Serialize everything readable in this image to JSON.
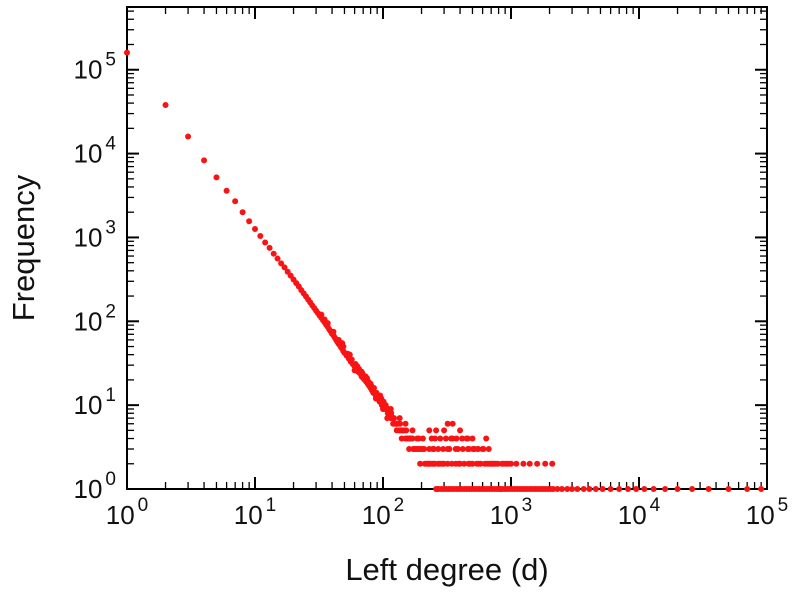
{
  "figure": {
    "background": "#ffffff",
    "frame_color": "#000000"
  },
  "chart_data": {
    "type": "scatter",
    "xlabel": "Left degree (d)",
    "ylabel": "Frequency",
    "xscale": "log",
    "yscale": "log",
    "xlim": [
      1,
      100000
    ],
    "ylim": [
      1,
      560000
    ],
    "x_tick_exponents": [
      0,
      1,
      2,
      3,
      4,
      5
    ],
    "y_tick_exponents": [
      0,
      1,
      2,
      3,
      4,
      5
    ],
    "grid": false,
    "legend": "none",
    "marker": {
      "shape": "circle",
      "color": "#f81414",
      "radius": 3
    },
    "power_law_fit": {
      "intercept": 150000,
      "exponent": -2.1
    },
    "points": [
      [
        1,
        160000
      ],
      [
        2,
        38000
      ],
      [
        3,
        16000
      ],
      [
        4,
        8300
      ],
      [
        5,
        5200
      ],
      [
        6,
        3600
      ],
      [
        7,
        2700
      ],
      [
        8,
        2000
      ],
      [
        9,
        1560
      ],
      [
        10,
        1260
      ],
      [
        11,
        1040
      ],
      [
        12,
        870
      ],
      [
        13,
        750
      ],
      [
        14,
        640
      ],
      [
        15,
        560
      ],
      [
        16,
        490
      ],
      [
        17,
        440
      ],
      [
        18,
        390
      ],
      [
        19,
        350
      ],
      [
        20,
        315
      ],
      [
        21,
        285
      ],
      [
        22,
        260
      ],
      [
        23,
        235
      ],
      [
        24,
        215
      ],
      [
        25,
        198
      ],
      [
        26,
        182
      ],
      [
        27,
        168
      ],
      [
        28,
        155
      ],
      [
        29,
        144
      ],
      [
        30,
        134
      ],
      [
        31,
        125
      ],
      [
        32,
        117
      ],
      [
        33,
        110
      ],
      [
        33,
        120
      ],
      [
        34,
        103
      ],
      [
        35,
        97
      ],
      [
        35,
        105
      ],
      [
        36,
        91
      ],
      [
        37,
        86
      ],
      [
        37,
        95
      ],
      [
        38,
        80
      ],
      [
        39,
        76
      ],
      [
        40,
        71
      ],
      [
        41,
        68
      ],
      [
        41,
        75
      ],
      [
        42,
        64
      ],
      [
        43,
        60
      ],
      [
        44,
        57
      ],
      [
        45,
        54
      ],
      [
        45,
        60
      ],
      [
        46,
        52
      ],
      [
        47,
        49
      ],
      [
        48,
        47
      ],
      [
        48,
        55
      ],
      [
        49,
        44
      ],
      [
        49,
        50
      ],
      [
        50,
        42
      ],
      [
        52,
        39
      ],
      [
        53,
        41
      ],
      [
        54,
        36
      ],
      [
        55,
        40
      ],
      [
        56,
        33
      ],
      [
        57,
        35
      ],
      [
        58,
        31
      ],
      [
        60,
        29
      ],
      [
        60,
        26
      ],
      [
        61,
        31
      ],
      [
        62,
        27
      ],
      [
        63,
        29
      ],
      [
        64,
        25
      ],
      [
        65,
        27
      ],
      [
        66,
        24
      ],
      [
        68,
        22
      ],
      [
        68,
        25
      ],
      [
        69,
        24
      ],
      [
        70,
        21
      ],
      [
        72,
        20
      ],
      [
        73,
        22
      ],
      [
        74,
        19
      ],
      [
        75,
        21
      ],
      [
        76,
        18
      ],
      [
        77,
        19
      ],
      [
        78,
        17
      ],
      [
        80,
        16
      ],
      [
        80,
        18
      ],
      [
        81,
        17
      ],
      [
        82,
        15
      ],
      [
        84,
        14
      ],
      [
        85,
        16
      ],
      [
        86,
        14
      ],
      [
        88,
        13
      ],
      [
        88,
        12
      ],
      [
        89,
        14
      ],
      [
        90,
        12
      ],
      [
        92,
        12
      ],
      [
        93,
        13
      ],
      [
        94,
        11
      ],
      [
        95,
        13
      ],
      [
        96,
        11
      ],
      [
        97,
        12
      ],
      [
        98,
        10
      ],
      [
        100,
        10
      ],
      [
        100,
        9
      ],
      [
        101,
        11
      ],
      [
        103,
        9
      ],
      [
        105,
        10
      ],
      [
        106,
        9
      ],
      [
        108,
        7
      ],
      [
        109,
        8
      ],
      [
        110,
        9
      ],
      [
        112,
        8
      ],
      [
        115,
        7
      ],
      [
        115,
        9
      ],
      [
        116,
        8
      ],
      [
        118,
        7
      ],
      [
        120,
        6
      ],
      [
        121,
        7
      ],
      [
        122,
        7
      ],
      [
        124,
        6
      ],
      [
        127,
        6
      ],
      [
        128,
        5
      ],
      [
        128,
        6
      ],
      [
        130,
        6
      ],
      [
        134,
        5
      ],
      [
        135,
        7
      ],
      [
        136,
        6
      ],
      [
        138,
        5
      ],
      [
        140,
        4
      ],
      [
        142,
        5
      ],
      [
        144,
        5
      ],
      [
        146,
        5
      ],
      [
        150,
        4
      ],
      [
        150,
        6
      ],
      [
        152,
        5
      ],
      [
        155,
        4
      ],
      [
        160,
        4
      ],
      [
        160,
        3
      ],
      [
        162,
        4
      ],
      [
        165,
        4
      ],
      [
        170,
        4
      ],
      [
        170,
        5
      ],
      [
        172,
        3
      ],
      [
        175,
        3
      ],
      [
        180,
        3
      ],
      [
        185,
        4
      ],
      [
        186,
        3
      ],
      [
        190,
        4
      ],
      [
        192,
        3
      ],
      [
        195,
        2
      ],
      [
        198,
        3
      ],
      [
        205,
        3
      ],
      [
        205,
        4
      ],
      [
        210,
        3
      ],
      [
        212,
        2
      ],
      [
        220,
        2
      ],
      [
        225,
        2
      ],
      [
        228,
        2
      ],
      [
        230,
        3
      ],
      [
        230,
        5
      ],
      [
        236,
        2
      ],
      [
        240,
        4
      ],
      [
        244,
        2
      ],
      [
        245,
        3
      ],
      [
        250,
        2
      ],
      [
        250,
        3
      ],
      [
        255,
        2
      ],
      [
        255,
        4
      ],
      [
        260,
        5
      ],
      [
        265,
        1
      ],
      [
        270,
        2
      ],
      [
        270,
        3
      ],
      [
        275,
        2
      ],
      [
        280,
        4
      ],
      [
        285,
        2
      ],
      [
        295,
        2
      ],
      [
        295,
        3
      ],
      [
        300,
        2
      ],
      [
        300,
        5
      ],
      [
        310,
        4
      ],
      [
        320,
        2
      ],
      [
        320,
        3
      ],
      [
        320,
        6
      ],
      [
        330,
        3
      ],
      [
        340,
        4
      ],
      [
        345,
        2
      ],
      [
        350,
        4
      ],
      [
        350,
        6
      ],
      [
        370,
        2
      ],
      [
        370,
        3
      ],
      [
        375,
        4
      ],
      [
        385,
        3
      ],
      [
        390,
        2
      ],
      [
        400,
        2
      ],
      [
        400,
        5
      ],
      [
        415,
        4
      ],
      [
        420,
        3
      ],
      [
        430,
        2
      ],
      [
        450,
        4
      ],
      [
        460,
        3
      ],
      [
        460,
        4
      ],
      [
        465,
        2
      ],
      [
        470,
        3
      ],
      [
        480,
        2
      ],
      [
        500,
        2
      ],
      [
        500,
        4
      ],
      [
        505,
        3
      ],
      [
        520,
        3
      ],
      [
        540,
        2
      ],
      [
        550,
        3
      ],
      [
        555,
        3
      ],
      [
        560,
        2
      ],
      [
        580,
        2
      ],
      [
        600,
        3
      ],
      [
        610,
        3
      ],
      [
        625,
        2
      ],
      [
        640,
        4
      ],
      [
        650,
        2
      ],
      [
        670,
        3
      ],
      [
        675,
        2
      ],
      [
        700,
        2
      ],
      [
        720,
        2
      ],
      [
        730,
        2
      ],
      [
        760,
        2
      ],
      [
        790,
        2
      ],
      [
        820,
        1
      ],
      [
        850,
        2
      ],
      [
        880,
        2
      ],
      [
        920,
        2
      ],
      [
        950,
        2
      ],
      [
        1000,
        2
      ],
      [
        1100,
        2
      ],
      [
        1250,
        2
      ],
      [
        1400,
        2
      ],
      [
        1600,
        2
      ],
      [
        1850,
        2
      ],
      [
        2100,
        2
      ],
      [
        260,
        1
      ],
      [
        272,
        1
      ],
      [
        285,
        1
      ],
      [
        298,
        1
      ],
      [
        312,
        1
      ],
      [
        327,
        1
      ],
      [
        342,
        1
      ],
      [
        358,
        1
      ],
      [
        375,
        1
      ],
      [
        392,
        1
      ],
      [
        410,
        1
      ],
      [
        430,
        1
      ],
      [
        450,
        1
      ],
      [
        471,
        1
      ],
      [
        493,
        1
      ],
      [
        516,
        1
      ],
      [
        540,
        1
      ],
      [
        565,
        1
      ],
      [
        591,
        1
      ],
      [
        619,
        1
      ],
      [
        648,
        1
      ],
      [
        678,
        1
      ],
      [
        710,
        1
      ],
      [
        743,
        1
      ],
      [
        778,
        1
      ],
      [
        814,
        1
      ],
      [
        852,
        1
      ],
      [
        892,
        1
      ],
      [
        934,
        1
      ],
      [
        978,
        1
      ],
      [
        1024,
        1
      ],
      [
        1072,
        1
      ],
      [
        1122,
        1
      ],
      [
        1175,
        1
      ],
      [
        1230,
        1
      ],
      [
        1288,
        1
      ],
      [
        1348,
        1
      ],
      [
        1411,
        1
      ],
      [
        1477,
        1
      ],
      [
        1546,
        1
      ],
      [
        1619,
        1
      ],
      [
        1695,
        1
      ],
      [
        1774,
        1
      ],
      [
        1857,
        1
      ],
      [
        1944,
        1
      ],
      [
        2035,
        1
      ],
      [
        2130,
        1
      ],
      [
        2300,
        1
      ],
      [
        2500,
        1
      ],
      [
        2750,
        1
      ],
      [
        3000,
        1
      ],
      [
        3300,
        1
      ],
      [
        3700,
        1
      ],
      [
        4100,
        1
      ],
      [
        4600,
        1
      ],
      [
        5200,
        1
      ],
      [
        6000,
        1
      ],
      [
        7000,
        1
      ],
      [
        8200,
        1
      ],
      [
        9500,
        1
      ],
      [
        11000,
        1
      ],
      [
        13000,
        1
      ],
      [
        16000,
        1
      ],
      [
        20000,
        1
      ],
      [
        26000,
        1
      ],
      [
        35000,
        1
      ],
      [
        50000,
        1
      ],
      [
        70000,
        1
      ],
      [
        90000,
        1
      ]
    ]
  }
}
